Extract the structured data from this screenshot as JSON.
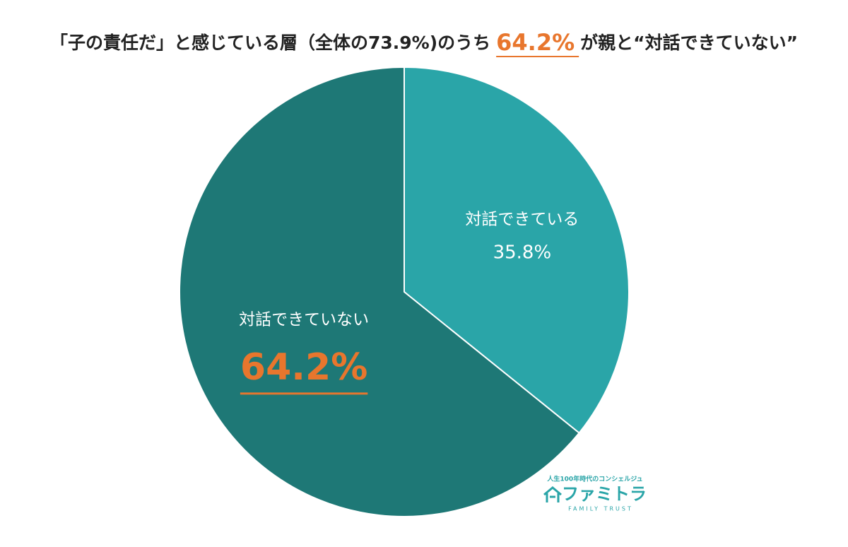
{
  "chart_data": {
    "type": "pie",
    "title_parts": [
      "「子の責任だ」と感じている層（全体の73.9%)のうち",
      "64.2%",
      "が親と“対話できていない”"
    ],
    "title_part_colors": [
      "#222222",
      "#e8762d",
      "#222222"
    ],
    "categories": [
      "対話できている",
      "対話できていない"
    ],
    "values": [
      35.8,
      64.2
    ],
    "value_labels": [
      "35.8%",
      "64.2%"
    ],
    "colors": [
      "#2aa5a8",
      "#1e7876"
    ],
    "value_label_colors": [
      "#ffffff",
      "#e8762d"
    ],
    "value_label_underline": [
      false,
      true
    ]
  },
  "logo": {
    "tagline": "人生100年時代のコンシェルジュ",
    "name": "ファミトラ",
    "sub": "FAMILY TRUST"
  }
}
